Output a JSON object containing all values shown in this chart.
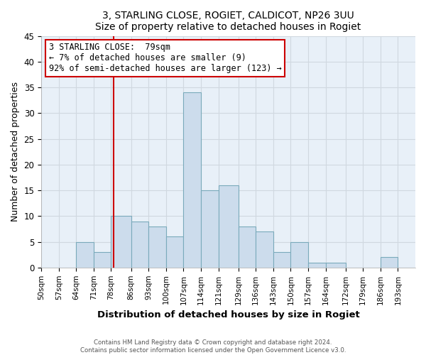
{
  "title1": "3, STARLING CLOSE, ROGIET, CALDICOT, NP26 3UU",
  "title2": "Size of property relative to detached houses in Rogiet",
  "xlabel": "Distribution of detached houses by size in Rogiet",
  "ylabel": "Number of detached properties",
  "footer1": "Contains HM Land Registry data © Crown copyright and database right 2024.",
  "footer2": "Contains public sector information licensed under the Open Government Licence v3.0.",
  "bin_labels": [
    "50sqm",
    "57sqm",
    "64sqm",
    "71sqm",
    "78sqm",
    "86sqm",
    "93sqm",
    "100sqm",
    "107sqm",
    "114sqm",
    "121sqm",
    "129sqm",
    "136sqm",
    "143sqm",
    "150sqm",
    "157sqm",
    "164sqm",
    "172sqm",
    "179sqm",
    "186sqm",
    "193sqm"
  ],
  "bin_edges": [
    50,
    57,
    64,
    71,
    78,
    86,
    93,
    100,
    107,
    114,
    121,
    129,
    136,
    143,
    150,
    157,
    164,
    172,
    179,
    186,
    193,
    200
  ],
  "counts": [
    0,
    0,
    5,
    3,
    10,
    9,
    8,
    6,
    34,
    15,
    16,
    8,
    7,
    3,
    5,
    1,
    1,
    0,
    0,
    2,
    0
  ],
  "property_value": 79,
  "annotation_title": "3 STARLING CLOSE:  79sqm",
  "annotation_line1": "← 7% of detached houses are smaller (9)",
  "annotation_line2": "92% of semi-detached houses are larger (123) →",
  "bar_color": "#ccdcec",
  "bar_edge_color": "#7aaabb",
  "ref_line_color": "#cc0000",
  "annotation_box_edge": "#cc0000",
  "ylim": [
    0,
    45
  ],
  "yticks": [
    0,
    5,
    10,
    15,
    20,
    25,
    30,
    35,
    40,
    45
  ],
  "grid_color": "#d0d8e0",
  "bg_color": "#ffffff",
  "plot_bg_color": "#e8f0f8"
}
